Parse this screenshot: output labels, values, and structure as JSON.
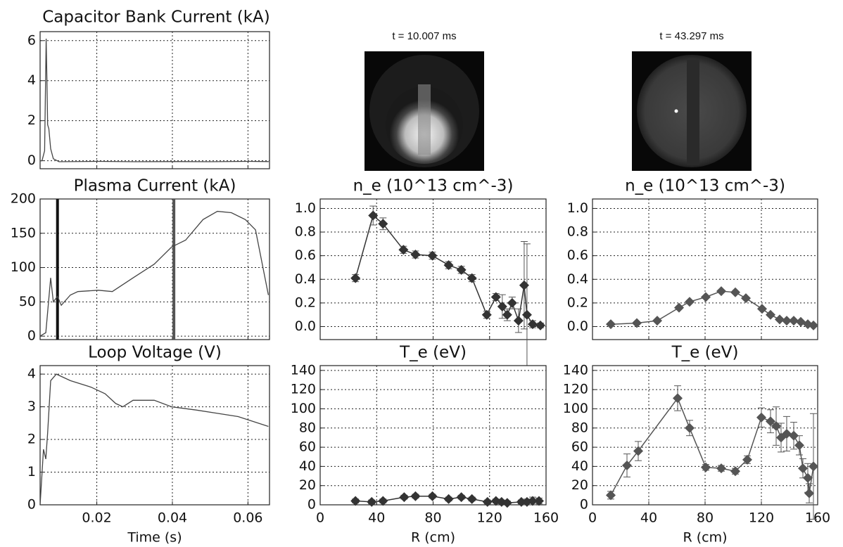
{
  "images": [
    {
      "label": "t = 10.007 ms"
    },
    {
      "label": "t = 43.297 ms"
    }
  ],
  "chart_data": [
    {
      "type": "line",
      "title": "Capacitor Bank Current (kA)",
      "color": "#444",
      "x": [
        0.005,
        0.0055,
        0.0062,
        0.0066,
        0.0068,
        0.007,
        0.0073,
        0.0078,
        0.0085,
        0.01,
        0.02,
        0.03,
        0.04,
        0.05,
        0.06,
        0.0655
      ],
      "values": [
        0,
        0,
        0.5,
        6.1,
        4.0,
        1.8,
        1.6,
        0.6,
        0.1,
        -0.05,
        -0.03,
        -0.05,
        -0.04,
        -0.05,
        -0.03,
        -0.04
      ],
      "xlim": [
        0.005,
        0.0657
      ],
      "ylim": [
        -0.4,
        6.45
      ],
      "xticks": [
        0.02,
        0.04,
        0.06
      ],
      "yticks": [
        0,
        2,
        4,
        6
      ],
      "grid": true
    },
    {
      "type": "line",
      "title": "Plasma Current (kA)",
      "color": "#444",
      "x": [
        0.005,
        0.0065,
        0.0078,
        0.0085,
        0.0096,
        0.0106,
        0.013,
        0.015,
        0.0204,
        0.0241,
        0.0296,
        0.0352,
        0.0398,
        0.0435,
        0.0481,
        0.0519,
        0.0556,
        0.0593,
        0.062,
        0.0654
      ],
      "values": [
        0,
        5,
        85,
        50,
        58,
        45,
        60,
        65,
        67,
        65,
        85,
        105,
        130,
        140,
        170,
        182,
        180,
        170,
        155,
        60
      ],
      "vlines": [
        {
          "x": 0.0096,
          "color": "#111"
        },
        {
          "x": 0.0404,
          "color": "#555"
        }
      ],
      "xlim": [
        0.005,
        0.0657
      ],
      "ylim": [
        -5,
        200
      ],
      "xticks": [
        0.02,
        0.04,
        0.06
      ],
      "yticks": [
        0,
        50,
        100,
        150,
        200
      ],
      "grid": true
    },
    {
      "type": "line",
      "title": "Loop Voltage (V)",
      "xlabel": "Time (s)",
      "color": "#444",
      "x": [
        0.005,
        0.0059,
        0.0065,
        0.007,
        0.0078,
        0.0093,
        0.013,
        0.0185,
        0.0222,
        0.025,
        0.0269,
        0.0296,
        0.0352,
        0.0398,
        0.0463,
        0.0519,
        0.0574,
        0.0654
      ],
      "values": [
        0,
        1.7,
        1.4,
        2.2,
        3.8,
        4.0,
        3.8,
        3.6,
        3.4,
        3.1,
        3.0,
        3.2,
        3.2,
        3.0,
        2.9,
        2.8,
        2.7,
        2.4
      ],
      "xlim": [
        0.005,
        0.0657
      ],
      "ylim": [
        0,
        4.26
      ],
      "xticks": [
        0.02,
        0.04,
        0.06
      ],
      "yticks": [
        0,
        1,
        2,
        3,
        4
      ],
      "grid": true
    },
    {
      "type": "errorbar",
      "title": "n_e (10^13 cm^-3)",
      "color": "#333",
      "x": [
        25,
        37.5,
        44.5,
        59,
        67.5,
        79.5,
        91,
        100,
        107.5,
        118,
        124.5,
        129,
        132.5,
        136,
        140.5,
        144.5,
        146.5,
        150.5,
        156
      ],
      "values": [
        0.41,
        0.94,
        0.87,
        0.65,
        0.61,
        0.6,
        0.52,
        0.48,
        0.41,
        0.1,
        0.25,
        0.17,
        0.1,
        0.2,
        0.05,
        0.35,
        0.1,
        0.02,
        0.01
      ],
      "errors": [
        0.03,
        0.08,
        0.05,
        0.03,
        0.03,
        0.03,
        0.03,
        0.03,
        0.03,
        0.03,
        0.03,
        0.1,
        0.05,
        0.05,
        0.1,
        0.37,
        0.6,
        0.03,
        0.02
      ],
      "xlim": [
        0,
        160
      ],
      "ylim": [
        -0.11,
        1.08
      ],
      "xticks": [
        0,
        40,
        80,
        120,
        160
      ],
      "yticks": [
        {
          "value": 0,
          "label": "0.0"
        },
        0.2,
        0.4,
        0.6,
        0.8,
        {
          "value": 1,
          "label": "1.0"
        }
      ],
      "grid": true
    },
    {
      "type": "errorbar",
      "title": "T_e (eV)",
      "xlabel": "R (cm)",
      "color": "#333",
      "x": [
        25,
        36.5,
        44.5,
        59.5,
        67.5,
        79.5,
        91,
        100,
        107.5,
        118.5,
        124.5,
        128.5,
        132.5,
        142.5,
        146.5,
        150.5,
        155
      ],
      "values": [
        4,
        3,
        4,
        8,
        9,
        9,
        6,
        8,
        6,
        3,
        4,
        3,
        2,
        3,
        3,
        4,
        4
      ],
      "errors": [
        2,
        2,
        2,
        2,
        2,
        2,
        2,
        2,
        2,
        2,
        2,
        2,
        2,
        2,
        3,
        4,
        3
      ],
      "xlim": [
        0,
        160
      ],
      "ylim": [
        0,
        145
      ],
      "xticks": [
        0,
        40,
        80,
        120,
        160
      ],
      "yticks": [
        0,
        20,
        40,
        60,
        80,
        100,
        120,
        140
      ],
      "grid": true
    },
    {
      "type": "errorbar",
      "title": "n_e (10^13 cm^-3)",
      "color": "#555",
      "x": [
        13,
        31.5,
        46,
        61.5,
        69,
        80.5,
        91.5,
        101.5,
        109,
        120.5,
        126.5,
        133,
        138,
        143,
        148,
        153,
        157
      ],
      "values": [
        0.02,
        0.03,
        0.05,
        0.16,
        0.21,
        0.25,
        0.3,
        0.29,
        0.24,
        0.15,
        0.1,
        0.06,
        0.05,
        0.05,
        0.04,
        0.02,
        0.01
      ],
      "errors": [
        0.01,
        0.01,
        0.01,
        0.01,
        0.01,
        0.01,
        0.01,
        0.01,
        0.01,
        0.01,
        0.01,
        0.01,
        0.01,
        0.01,
        0.01,
        0.01,
        0.01
      ],
      "xlim": [
        0,
        160
      ],
      "ylim": [
        -0.11,
        1.08
      ],
      "xticks": [
        0,
        40,
        80,
        120,
        160
      ],
      "yticks": [
        {
          "value": 0,
          "label": "0.0"
        },
        0.2,
        0.4,
        0.6,
        0.8,
        {
          "value": 1,
          "label": "1.0"
        }
      ],
      "grid": true
    },
    {
      "type": "errorbar",
      "title": "T_e (eV)",
      "xlabel": "R (cm)",
      "color": "#555",
      "x": [
        13,
        24.5,
        32.5,
        60.5,
        69,
        80.5,
        91.5,
        101.5,
        110,
        120,
        126.5,
        130.5,
        134,
        138,
        143,
        147,
        149.5,
        153,
        154,
        157
      ],
      "values": [
        10,
        41,
        56,
        111,
        80,
        39,
        38,
        35,
        47,
        91,
        87,
        82,
        70,
        74,
        72,
        62,
        38,
        28,
        12,
        40
      ],
      "errors": [
        4,
        12,
        10,
        13,
        8,
        3,
        3,
        3,
        4,
        10,
        12,
        20,
        15,
        18,
        14,
        10,
        10,
        15,
        10,
        55
      ],
      "xlim": [
        0,
        160
      ],
      "ylim": [
        0,
        145
      ],
      "xticks": [
        0,
        40,
        80,
        120,
        160
      ],
      "yticks": [
        0,
        20,
        40,
        60,
        80,
        100,
        120,
        140
      ],
      "grid": true
    }
  ]
}
